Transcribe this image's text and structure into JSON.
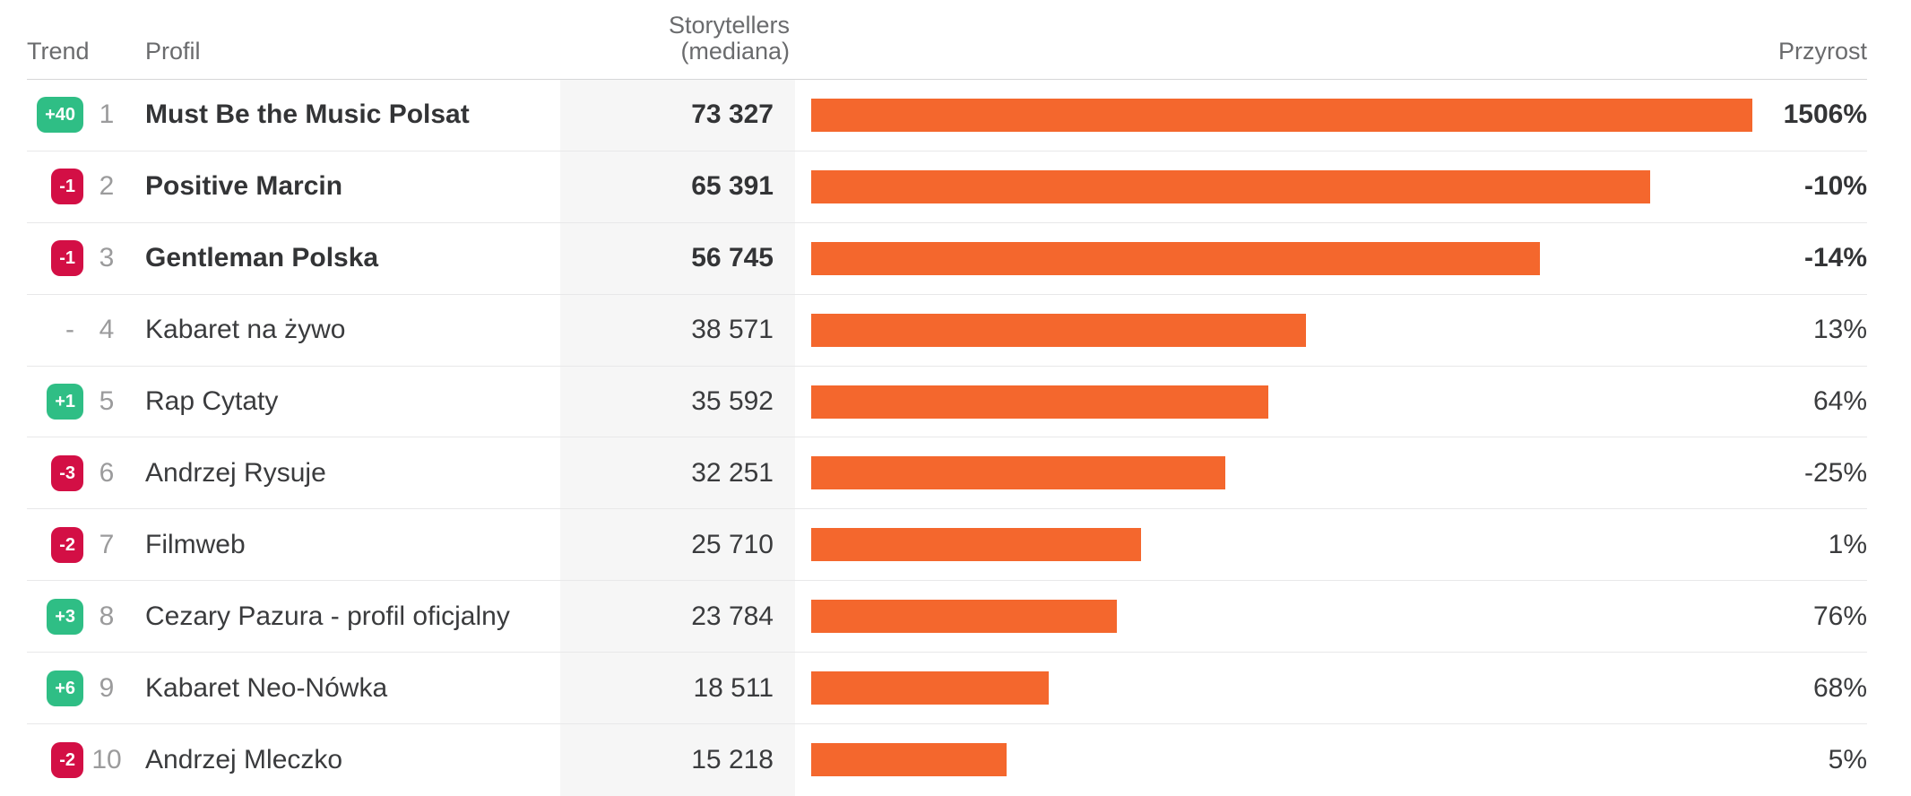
{
  "colors": {
    "bar_orange": "#f4672d",
    "badge_green": "#2fbe85",
    "badge_red": "#d30f45",
    "value_column_bg": "#f6f6f6"
  },
  "table": {
    "headers": {
      "trend": "Trend",
      "profil": "Profil",
      "storytellers": "Storytellers (mediana)",
      "przyrost": "Przyrost"
    },
    "rows": [
      {
        "trend": "+40",
        "trend_direction": "up",
        "rank": "1",
        "profile": "Must Be the Music Polsat",
        "storytellers": "73 327",
        "storytellers_value": 73327,
        "przyrost": "1506%",
        "emphasis": true
      },
      {
        "trend": "-1",
        "trend_direction": "down",
        "rank": "2",
        "profile": "Positive Marcin",
        "storytellers": "65 391",
        "storytellers_value": 65391,
        "przyrost": "-10%",
        "emphasis": true
      },
      {
        "trend": "-1",
        "trend_direction": "down",
        "rank": "3",
        "profile": "Gentleman Polska",
        "storytellers": "56 745",
        "storytellers_value": 56745,
        "przyrost": "-14%",
        "emphasis": true
      },
      {
        "trend": "-",
        "trend_direction": "none",
        "rank": "4",
        "profile": "Kabaret na żywo",
        "storytellers": "38 571",
        "storytellers_value": 38571,
        "przyrost": "13%",
        "emphasis": false
      },
      {
        "trend": "+1",
        "trend_direction": "up",
        "rank": "5",
        "profile": "Rap Cytaty",
        "storytellers": "35 592",
        "storytellers_value": 35592,
        "przyrost": "64%",
        "emphasis": false
      },
      {
        "trend": "-3",
        "trend_direction": "down",
        "rank": "6",
        "profile": "Andrzej Rysuje",
        "storytellers": "32 251",
        "storytellers_value": 32251,
        "przyrost": "-25%",
        "emphasis": false
      },
      {
        "trend": "-2",
        "trend_direction": "down",
        "rank": "7",
        "profile": "Filmweb",
        "storytellers": "25 710",
        "storytellers_value": 25710,
        "przyrost": "1%",
        "emphasis": false
      },
      {
        "trend": "+3",
        "trend_direction": "up",
        "rank": "8",
        "profile": "Cezary Pazura - profil oficjalny",
        "storytellers": "23 784",
        "storytellers_value": 23784,
        "przyrost": "76%",
        "emphasis": false
      },
      {
        "trend": "+6",
        "trend_direction": "up",
        "rank": "9",
        "profile": "Kabaret Neo-Nówka",
        "storytellers": "18 511",
        "storytellers_value": 18511,
        "przyrost": "68%",
        "emphasis": false
      },
      {
        "trend": "-2",
        "trend_direction": "down",
        "rank": "10",
        "profile": "Andrzej Mleczko",
        "storytellers": "15 218",
        "storytellers_value": 15218,
        "przyrost": "5%",
        "emphasis": false
      }
    ]
  },
  "chart_data": {
    "type": "bar",
    "orientation": "horizontal",
    "title": "Storytellers (mediana)",
    "categories": [
      "Must Be the Music Polsat",
      "Positive Marcin",
      "Gentleman Polska",
      "Kabaret na żywo",
      "Rap Cytaty",
      "Andrzej Rysuje",
      "Filmweb",
      "Cezary Pazura - profil oficjalny",
      "Kabaret Neo-Nówka",
      "Andrzej Mleczko"
    ],
    "values": [
      73327,
      65391,
      56745,
      38571,
      35592,
      32251,
      25710,
      23784,
      18511,
      15218
    ],
    "growth_percent": [
      1506,
      -10,
      -14,
      13,
      64,
      -25,
      1,
      76,
      68,
      5
    ],
    "trend_change": [
      "+40",
      "-1",
      "-1",
      "-",
      "+1",
      "-3",
      "-2",
      "+3",
      "+6",
      "-2"
    ],
    "bar_color": "#f4672d",
    "xlim": [
      0,
      73327
    ],
    "grid": false,
    "legend": "none"
  }
}
